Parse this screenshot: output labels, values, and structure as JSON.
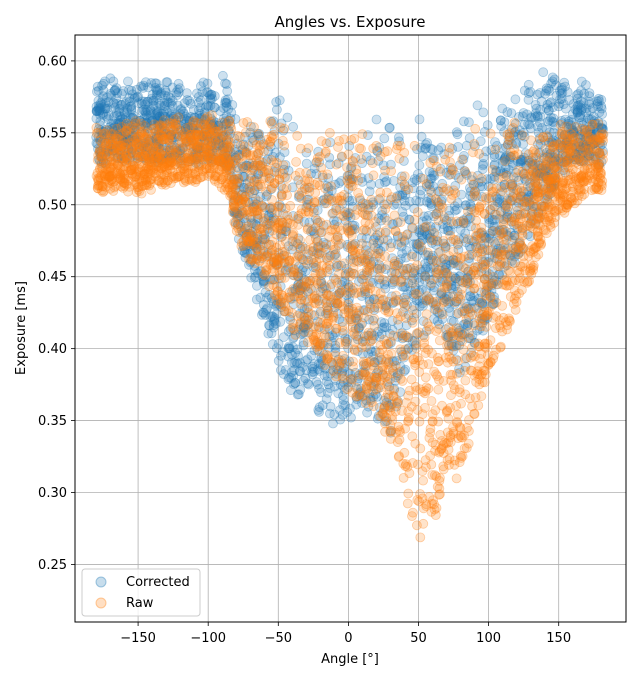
{
  "chart_data": {
    "type": "scatter",
    "title": "Angles vs. Exposure",
    "xlabel": "Angle [°]",
    "ylabel": "Exposure [ms]",
    "xlim": [
      -195,
      198
    ],
    "ylim": [
      0.21,
      0.618
    ],
    "xticks": [
      -150,
      -100,
      -50,
      0,
      50,
      100,
      150
    ],
    "xtick_labels": [
      "−150",
      "−100",
      "−50",
      "0",
      "50",
      "100",
      "150"
    ],
    "yticks": [
      0.25,
      0.3,
      0.35,
      0.4,
      0.45,
      0.5,
      0.55,
      0.6
    ],
    "ytick_labels": [
      "0.25",
      "0.30",
      "0.35",
      "0.40",
      "0.45",
      "0.50",
      "0.55",
      "0.60"
    ],
    "grid": true,
    "legend_position": "lower-left",
    "series": [
      {
        "name": "Corrected",
        "color": "#1f77b4",
        "envelope_x": [
          -180,
          -150,
          -120,
          -100,
          -85,
          -80,
          -70,
          -60,
          -50,
          -40,
          -30,
          -20,
          -10,
          0,
          10,
          20,
          30,
          40,
          50,
          60,
          70,
          80,
          90,
          100,
          110,
          120,
          130,
          140,
          150,
          160,
          170,
          180
        ],
        "envelope_upper": [
          0.585,
          0.59,
          0.585,
          0.59,
          0.595,
          0.56,
          0.56,
          0.56,
          0.58,
          0.555,
          0.55,
          0.55,
          0.545,
          0.555,
          0.55,
          0.56,
          0.555,
          0.555,
          0.565,
          0.555,
          0.55,
          0.56,
          0.575,
          0.56,
          0.57,
          0.585,
          0.59,
          0.595,
          0.59,
          0.585,
          0.585,
          0.575
        ],
        "envelope_lower": [
          0.53,
          0.53,
          0.53,
          0.53,
          0.525,
          0.48,
          0.45,
          0.42,
          0.39,
          0.36,
          0.37,
          0.35,
          0.345,
          0.35,
          0.36,
          0.35,
          0.34,
          0.38,
          0.4,
          0.42,
          0.41,
          0.38,
          0.4,
          0.42,
          0.45,
          0.46,
          0.48,
          0.5,
          0.52,
          0.53,
          0.53,
          0.53
        ]
      },
      {
        "name": "Raw",
        "color": "#ff7f0e",
        "envelope_x": [
          -180,
          -150,
          -120,
          -100,
          -85,
          -80,
          -70,
          -60,
          -50,
          -40,
          -30,
          -20,
          -10,
          0,
          10,
          20,
          30,
          40,
          50,
          60,
          70,
          80,
          90,
          100,
          110,
          120,
          130,
          140,
          150,
          160,
          170,
          180
        ],
        "envelope_upper": [
          0.555,
          0.56,
          0.56,
          0.565,
          0.56,
          0.555,
          0.565,
          0.56,
          0.56,
          0.55,
          0.555,
          0.55,
          0.55,
          0.555,
          0.56,
          0.55,
          0.545,
          0.555,
          0.545,
          0.545,
          0.545,
          0.55,
          0.555,
          0.56,
          0.56,
          0.56,
          0.555,
          0.555,
          0.56,
          0.56,
          0.56,
          0.555
        ],
        "envelope_lower": [
          0.51,
          0.51,
          0.515,
          0.52,
          0.51,
          0.48,
          0.46,
          0.45,
          0.43,
          0.41,
          0.4,
          0.39,
          0.38,
          0.37,
          0.36,
          0.35,
          0.34,
          0.3,
          0.26,
          0.28,
          0.31,
          0.31,
          0.35,
          0.38,
          0.4,
          0.43,
          0.45,
          0.48,
          0.49,
          0.5,
          0.51,
          0.51
        ]
      }
    ]
  }
}
